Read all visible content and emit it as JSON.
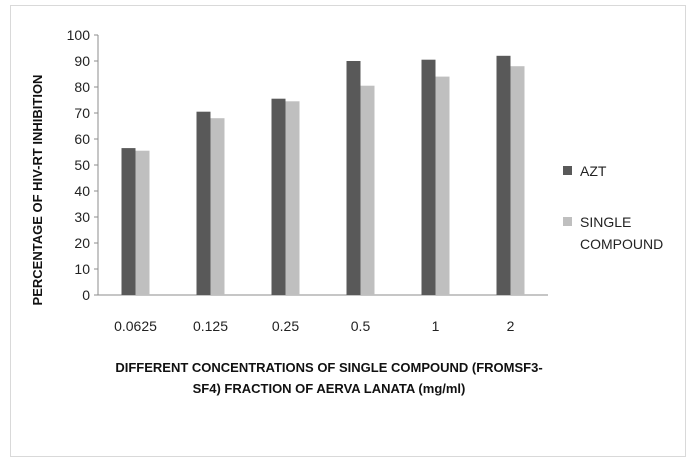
{
  "chart_data": {
    "type": "bar",
    "categories": [
      "0.0625",
      "0.125",
      "0.25",
      "0.5",
      "1",
      "2"
    ],
    "series": [
      {
        "name": "AZT",
        "values": [
          56.5,
          70.5,
          75.5,
          90,
          90.5,
          92
        ],
        "color": "#595959"
      },
      {
        "name": "SINGLE COMPOUND",
        "values": [
          55.5,
          68,
          74.5,
          80.5,
          84,
          88
        ],
        "color": "#bfbfbf"
      }
    ],
    "legend": {
      "position": "right",
      "labels": [
        [
          "AZT"
        ],
        [
          "SINGLE",
          "COMPOUND"
        ]
      ]
    },
    "xlabel": "DIFFERENT CONCENTRATIONS OF SINGLE COMPOUND (FROMSF3-SF4) FRACTION OF AERVA LANATA (mg/ml)",
    "xlabel_lines": [
      "DIFFERENT CONCENTRATIONS OF SINGLE COMPOUND (FROMSF3-",
      "SF4) FRACTION OF AERVA LANATA (mg/ml)"
    ],
    "ylabel": "PERCENTAGE OF HIV-RT INHIBITION",
    "yticks": [
      "0",
      "10",
      "20",
      "30",
      "40",
      "50",
      "60",
      "70",
      "80",
      "90",
      "100"
    ],
    "ylim": [
      0,
      100
    ],
    "grid": false
  }
}
